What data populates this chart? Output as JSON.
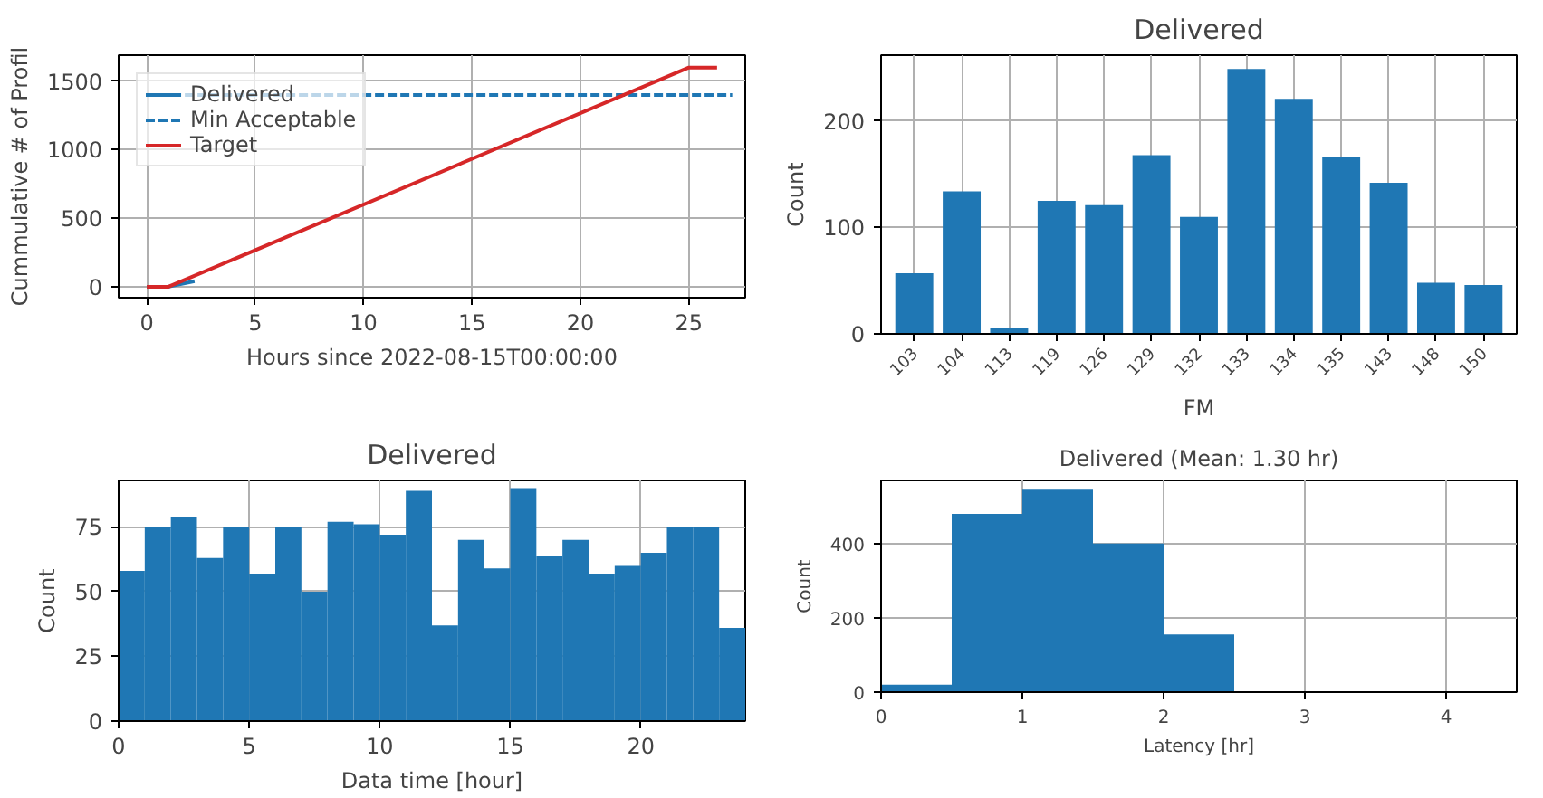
{
  "chart_data": [
    {
      "type": "line",
      "xlabel": "Hours since 2022-08-15T00:00:00",
      "ylabel": "Cummulative # of Profil",
      "xlim": [
        -1.3,
        27.6
      ],
      "ylim": [
        -80,
        1690
      ],
      "xticks": [
        0,
        5,
        10,
        15,
        20,
        25
      ],
      "yticks": [
        0,
        500,
        1000,
        1500
      ],
      "grid": true,
      "legend": "top left",
      "series": [
        {
          "name": "Delivered",
          "color": "#1f77b4",
          "x": [
            0,
            1,
            2.2
          ],
          "values": [
            0,
            0,
            40
          ],
          "line_style": "solid"
        },
        {
          "name": "Min Acceptable",
          "color": "#1f77b4",
          "x": [
            0,
            27
          ],
          "values": [
            1400,
            1400
          ],
          "line_style": "dashed"
        },
        {
          "name": "Target",
          "color": "#d62728",
          "x": [
            0,
            1,
            25,
            26.3
          ],
          "values": [
            0,
            0,
            1600,
            1600
          ],
          "line_style": "solid"
        }
      ]
    },
    {
      "type": "bar",
      "title": "Delivered",
      "xlabel": "FM",
      "ylabel": "Count",
      "categories": [
        "103",
        "104",
        "113",
        "119",
        "126",
        "129",
        "132",
        "133",
        "134",
        "135",
        "143",
        "148",
        "150"
      ],
      "values": [
        57,
        134,
        6,
        125,
        121,
        168,
        110,
        249,
        221,
        166,
        142,
        48,
        46
      ],
      "color": "#1f77b4",
      "ylim": [
        0,
        262
      ],
      "yticks": [
        0,
        100,
        200
      ],
      "grid": true
    },
    {
      "type": "histogram",
      "title": "Delivered",
      "xlabel": "Data time [hour]",
      "ylabel": "Count",
      "bins": [
        0,
        1,
        2,
        3,
        4,
        5,
        6,
        7,
        8,
        9,
        10,
        11,
        12,
        13,
        14,
        15,
        16,
        17,
        18,
        19,
        20,
        21,
        22,
        23,
        24
      ],
      "values": [
        58,
        75,
        79,
        63,
        75,
        57,
        75,
        50,
        77,
        76,
        72,
        89,
        37,
        70,
        59,
        90,
        64,
        70,
        57,
        60,
        65,
        75,
        75,
        36
      ],
      "color": "#1f77b4",
      "xlim": [
        0,
        24
      ],
      "ylim": [
        0,
        93
      ],
      "xticks": [
        0,
        5,
        10,
        15,
        20
      ],
      "yticks": [
        0,
        25,
        50,
        75
      ],
      "grid": true
    },
    {
      "type": "histogram",
      "title": "Delivered (Mean: 1.30 hr)",
      "xlabel": "Latency [hr]",
      "ylabel": "Count",
      "bins": [
        0,
        0.5,
        1,
        1.5,
        2,
        2.5
      ],
      "values": [
        20,
        480,
        545,
        400,
        155
      ],
      "color": "#1f77b4",
      "xlim": [
        0,
        4.5
      ],
      "ylim": [
        0,
        570
      ],
      "xticks": [
        0,
        1,
        2,
        3,
        4
      ],
      "yticks": [
        0,
        200,
        400
      ],
      "grid": true
    }
  ]
}
